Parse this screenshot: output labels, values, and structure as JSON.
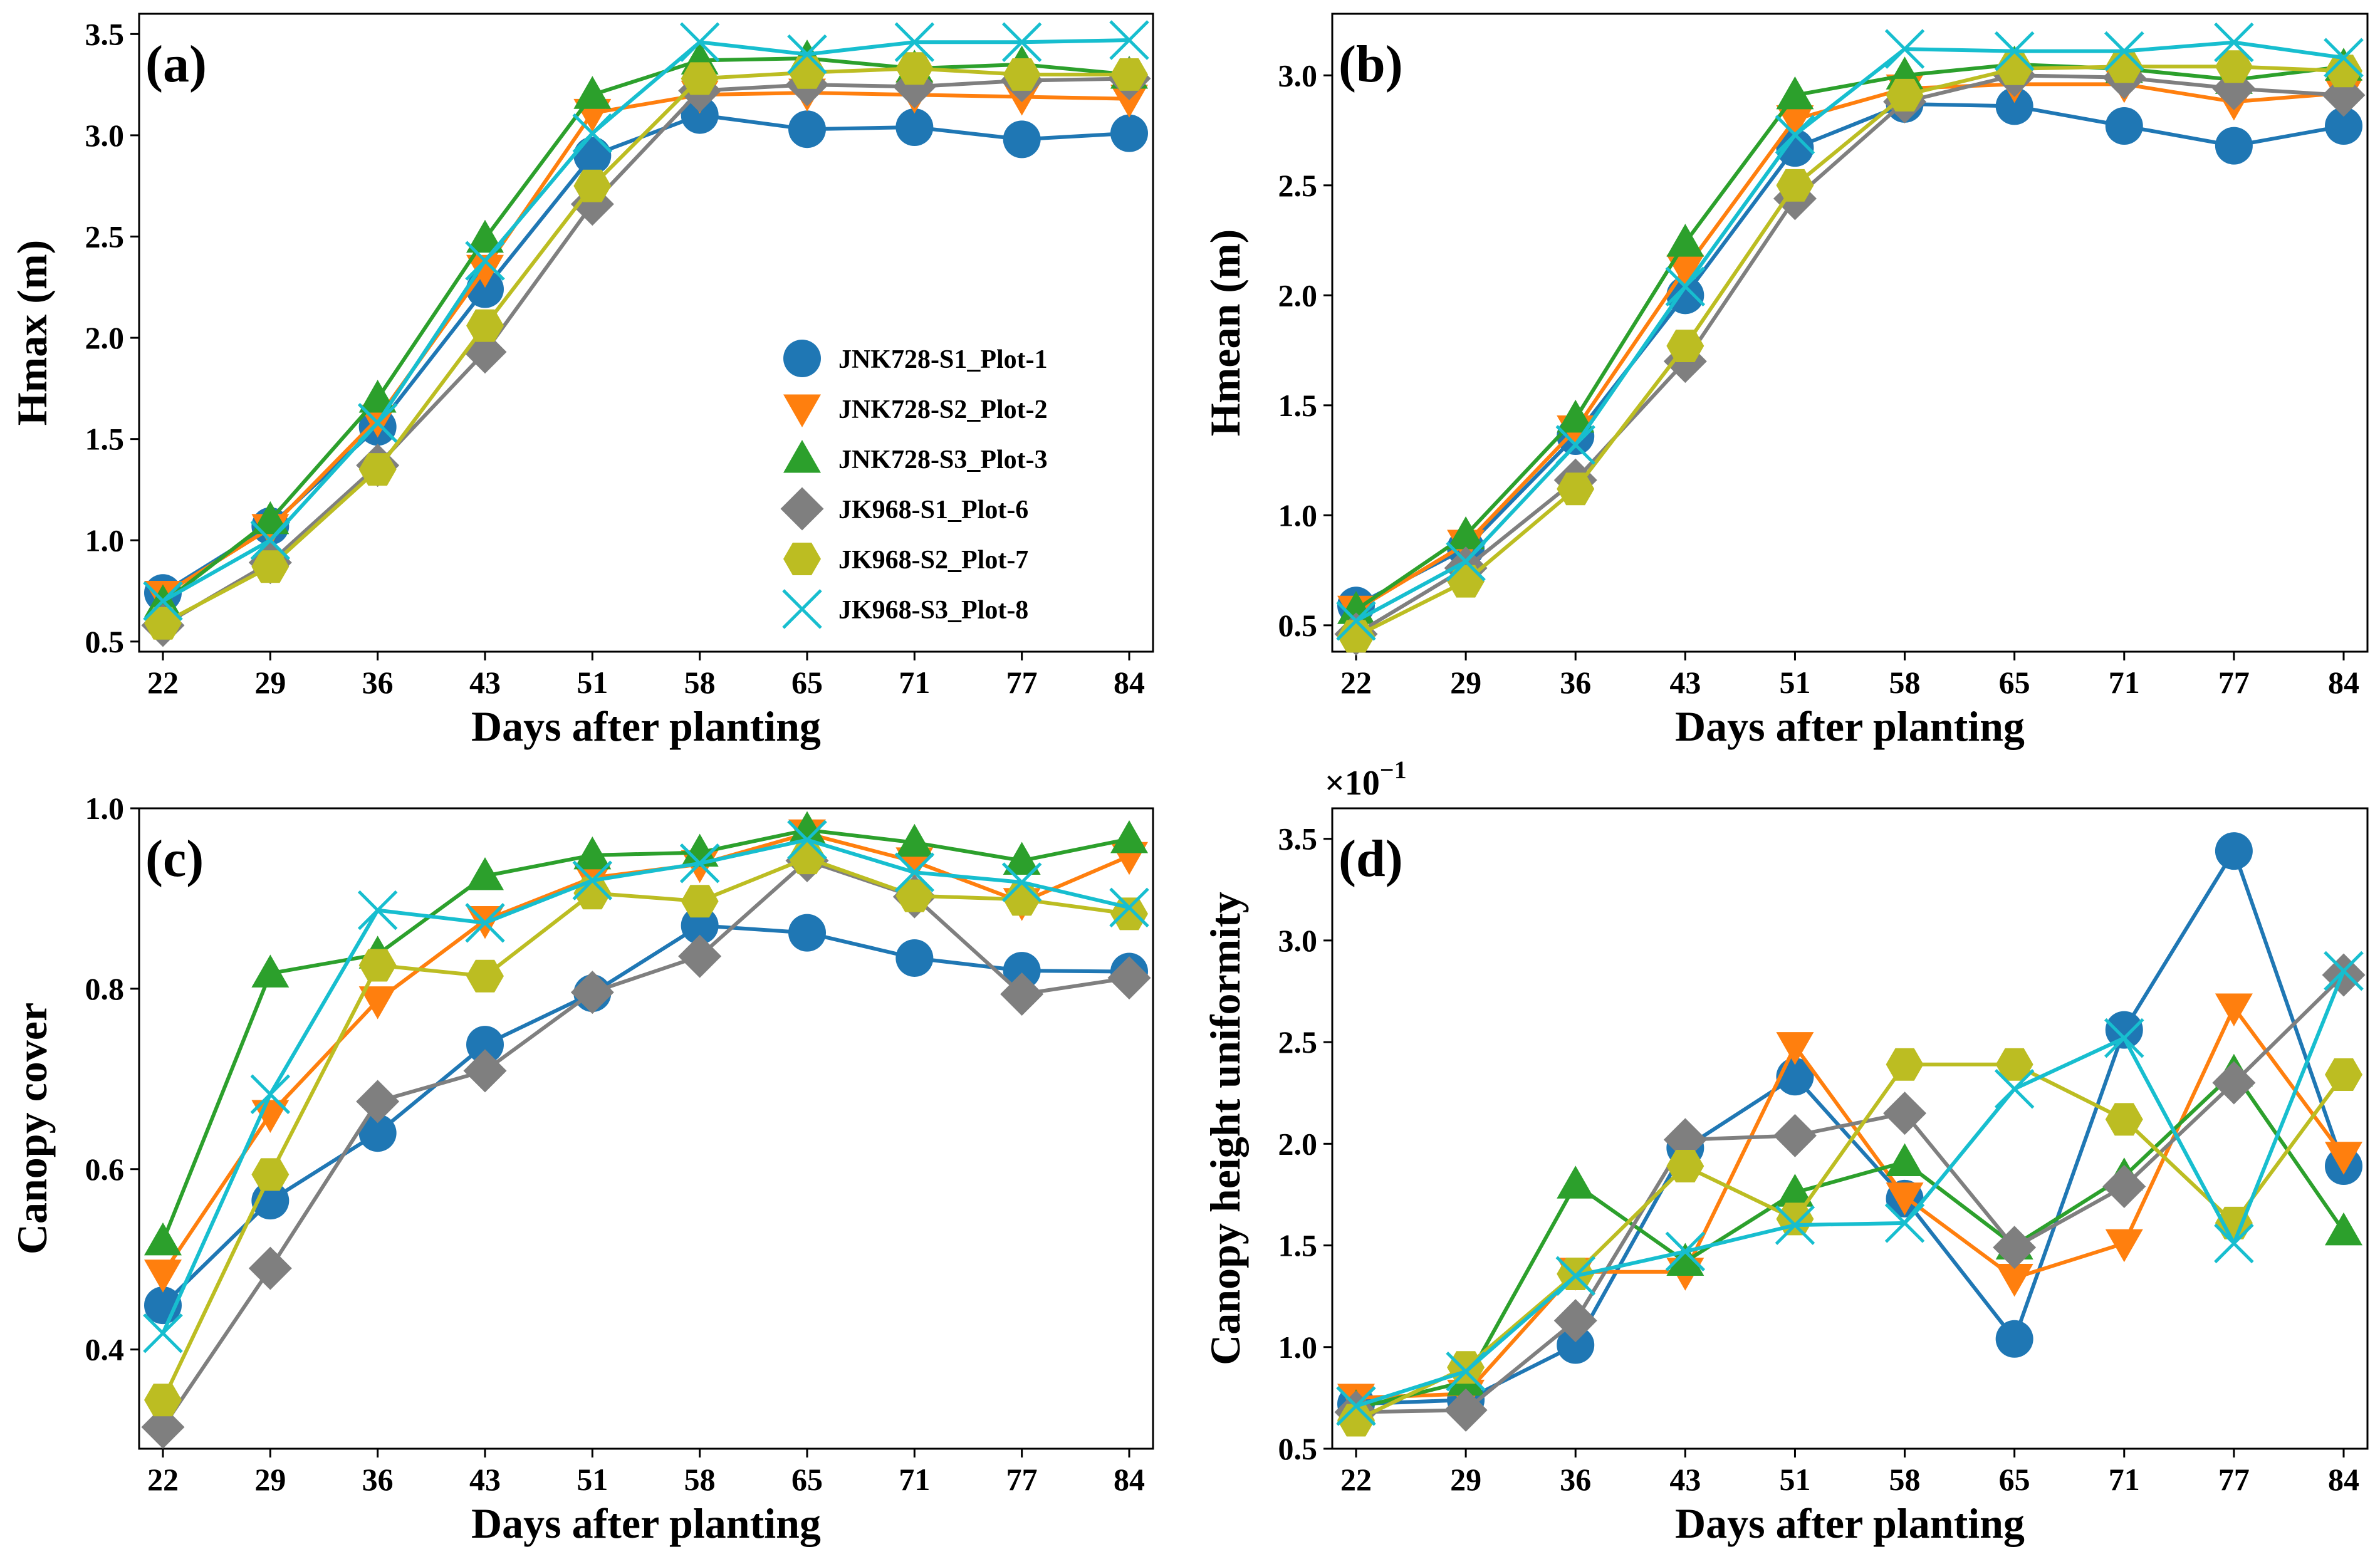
{
  "chart_data": [
    {
      "type": "line",
      "panel_label": "(a)",
      "xlabel": "Days after planting",
      "ylabel": "Hmax (m)",
      "x": [
        22,
        29,
        36,
        43,
        51,
        58,
        65,
        71,
        77,
        84
      ],
      "ylim": [
        0.45,
        3.6
      ],
      "yticks": [
        0.5,
        1.0,
        1.5,
        2.0,
        2.5,
        3.0,
        3.5
      ],
      "ytick_labels": [
        "0.5",
        "1.0",
        "1.5",
        "2.0",
        "2.5",
        "3.0",
        "3.5"
      ],
      "legend_position": "center-right",
      "series": [
        {
          "name": "JNK728-S1_Plot-1",
          "marker": "circle",
          "color": "#1f77b4",
          "values": [
            0.74,
            1.07,
            1.56,
            2.24,
            2.9,
            3.1,
            3.03,
            3.04,
            2.98,
            3.01
          ]
        },
        {
          "name": "JNK728-S2_Plot-2",
          "marker": "triangle-down",
          "color": "#ff7f0e",
          "values": [
            0.73,
            1.06,
            1.6,
            2.34,
            3.11,
            3.2,
            3.21,
            3.2,
            3.19,
            3.18
          ]
        },
        {
          "name": "JNK728-S3_Plot-3",
          "marker": "triangle-up",
          "color": "#2ca02c",
          "values": [
            0.69,
            1.1,
            1.7,
            2.49,
            3.2,
            3.37,
            3.38,
            3.33,
            3.35,
            3.3
          ]
        },
        {
          "name": "JK968-S1_Plot-6",
          "marker": "diamond",
          "color": "#7f7f7f",
          "values": [
            0.58,
            0.89,
            1.37,
            1.93,
            2.66,
            3.22,
            3.25,
            3.24,
            3.27,
            3.28
          ]
        },
        {
          "name": "JK968-S2_Plot-7",
          "marker": "hexagon",
          "color": "#bcbd22",
          "values": [
            0.59,
            0.87,
            1.35,
            2.06,
            2.75,
            3.28,
            3.31,
            3.33,
            3.3,
            3.3
          ]
        },
        {
          "name": "JK968-S3_Plot-8",
          "marker": "x",
          "color": "#17becf",
          "values": [
            0.7,
            1.0,
            1.58,
            2.38,
            3.01,
            3.46,
            3.4,
            3.46,
            3.46,
            3.47
          ]
        }
      ]
    },
    {
      "type": "line",
      "panel_label": "(b)",
      "xlabel": "Days after planting",
      "ylabel": "Hmean (m)",
      "x": [
        22,
        29,
        36,
        43,
        51,
        58,
        65,
        71,
        77,
        84
      ],
      "ylim": [
        0.38,
        3.28
      ],
      "yticks": [
        0.5,
        1.0,
        1.5,
        2.0,
        2.5,
        3.0
      ],
      "ytick_labels": [
        "0.5",
        "1.0",
        "1.5",
        "2.0",
        "2.5",
        "3.0"
      ],
      "series": [
        {
          "name": "JNK728-S1_Plot-1",
          "marker": "circle",
          "color": "#1f77b4",
          "values": [
            0.59,
            0.85,
            1.36,
            2.0,
            2.67,
            2.87,
            2.86,
            2.77,
            2.68,
            2.77
          ]
        },
        {
          "name": "JNK728-S2_Plot-2",
          "marker": "triangle-down",
          "color": "#ff7f0e",
          "values": [
            0.57,
            0.87,
            1.39,
            2.12,
            2.8,
            2.94,
            2.96,
            2.96,
            2.88,
            2.92
          ]
        },
        {
          "name": "JNK728-S3_Plot-3",
          "marker": "triangle-up",
          "color": "#2ca02c",
          "values": [
            0.57,
            0.91,
            1.44,
            2.24,
            2.91,
            3.0,
            3.05,
            3.03,
            2.98,
            3.04
          ]
        },
        {
          "name": "JK968-S1_Plot-6",
          "marker": "diamond",
          "color": "#7f7f7f",
          "values": [
            0.46,
            0.76,
            1.16,
            1.7,
            2.44,
            2.88,
            3.0,
            2.99,
            2.94,
            2.91
          ]
        },
        {
          "name": "JK968-S2_Plot-7",
          "marker": "hexagon",
          "color": "#bcbd22",
          "values": [
            0.45,
            0.7,
            1.12,
            1.77,
            2.5,
            2.91,
            3.03,
            3.04,
            3.04,
            3.02
          ]
        },
        {
          "name": "JK968-S3_Plot-8",
          "marker": "x",
          "color": "#17becf",
          "values": [
            0.52,
            0.79,
            1.32,
            2.04,
            2.73,
            3.12,
            3.11,
            3.11,
            3.15,
            3.08
          ]
        }
      ]
    },
    {
      "type": "line",
      "panel_label": "(c)",
      "xlabel": "Days after planting",
      "ylabel": "Canopy cover",
      "x": [
        22,
        29,
        36,
        43,
        51,
        58,
        65,
        71,
        77,
        84
      ],
      "ylim": [
        0.29,
        1.0
      ],
      "yticks": [
        0.4,
        0.6,
        0.8,
        1.0
      ],
      "ytick_labels": [
        "0.4",
        "0.6",
        "0.8",
        "1.0"
      ],
      "series": [
        {
          "name": "JNK728-S1_Plot-1",
          "marker": "circle",
          "color": "#1f77b4",
          "values": [
            0.449,
            0.565,
            0.64,
            0.738,
            0.795,
            0.87,
            0.862,
            0.834,
            0.82,
            0.819
          ]
        },
        {
          "name": "JNK728-S2_Plot-2",
          "marker": "triangle-down",
          "color": "#ff7f0e",
          "values": [
            0.484,
            0.661,
            0.787,
            0.876,
            0.923,
            0.938,
            0.972,
            0.941,
            0.896,
            0.947
          ]
        },
        {
          "name": "JNK728-S3_Plot-3",
          "marker": "triangle-up",
          "color": "#2ca02c",
          "values": [
            0.52,
            0.817,
            0.838,
            0.925,
            0.948,
            0.951,
            0.976,
            0.962,
            0.942,
            0.966
          ]
        },
        {
          "name": "JK968-S1_Plot-6",
          "marker": "diamond",
          "color": "#7f7f7f",
          "values": [
            0.314,
            0.49,
            0.675,
            0.709,
            0.796,
            0.836,
            0.942,
            0.902,
            0.794,
            0.812
          ]
        },
        {
          "name": "JK968-S2_Plot-7",
          "marker": "hexagon",
          "color": "#bcbd22",
          "values": [
            0.344,
            0.594,
            0.826,
            0.814,
            0.906,
            0.897,
            0.945,
            0.903,
            0.899,
            0.883
          ]
        },
        {
          "name": "JK968-S3_Plot-8",
          "marker": "x",
          "color": "#17becf",
          "values": [
            0.418,
            0.683,
            0.887,
            0.873,
            0.92,
            0.939,
            0.965,
            0.929,
            0.918,
            0.89
          ]
        }
      ]
    },
    {
      "type": "line",
      "panel_label": "(d)",
      "xlabel": "Days after planting",
      "ylabel": "Canopy height uniformity",
      "y_offset_label": "×10",
      "y_offset_exponent": "−1",
      "x": [
        22,
        29,
        36,
        43,
        51,
        58,
        65,
        71,
        77,
        84
      ],
      "ylim": [
        0.5,
        3.65
      ],
      "yticks": [
        0.5,
        1.0,
        1.5,
        2.0,
        2.5,
        3.0,
        3.5
      ],
      "ytick_labels": [
        "0.5",
        "1.0",
        "1.5",
        "2.0",
        "2.5",
        "3.0",
        "3.5"
      ],
      "series": [
        {
          "name": "JNK728-S1_Plot-1",
          "marker": "circle",
          "color": "#1f77b4",
          "values": [
            0.72,
            0.74,
            1.01,
            1.98,
            2.33,
            1.73,
            1.04,
            2.56,
            3.44,
            1.89
          ]
        },
        {
          "name": "JNK728-S2_Plot-2",
          "marker": "triangle-down",
          "color": "#ff7f0e",
          "values": [
            0.75,
            0.77,
            1.37,
            1.37,
            2.48,
            1.74,
            1.34,
            1.51,
            2.67,
            1.94
          ]
        },
        {
          "name": "JNK728-S3_Plot-3",
          "marker": "triangle-up",
          "color": "#2ca02c",
          "values": [
            0.7,
            0.83,
            1.8,
            1.42,
            1.76,
            1.91,
            1.5,
            1.84,
            2.35,
            1.57
          ]
        },
        {
          "name": "JK968-S1_Plot-6",
          "marker": "diamond",
          "color": "#7f7f7f",
          "values": [
            0.68,
            0.69,
            1.13,
            2.02,
            2.04,
            2.15,
            1.49,
            1.79,
            2.3,
            2.83
          ]
        },
        {
          "name": "JK968-S2_Plot-7",
          "marker": "hexagon",
          "color": "#bcbd22",
          "values": [
            0.64,
            0.9,
            1.36,
            1.89,
            1.63,
            2.39,
            2.39,
            2.12,
            1.61,
            2.34
          ]
        },
        {
          "name": "JK968-S3_Plot-8",
          "marker": "x",
          "color": "#17becf",
          "values": [
            0.71,
            0.88,
            1.35,
            1.47,
            1.6,
            1.61,
            2.27,
            2.52,
            1.51,
            2.85
          ]
        }
      ]
    }
  ]
}
